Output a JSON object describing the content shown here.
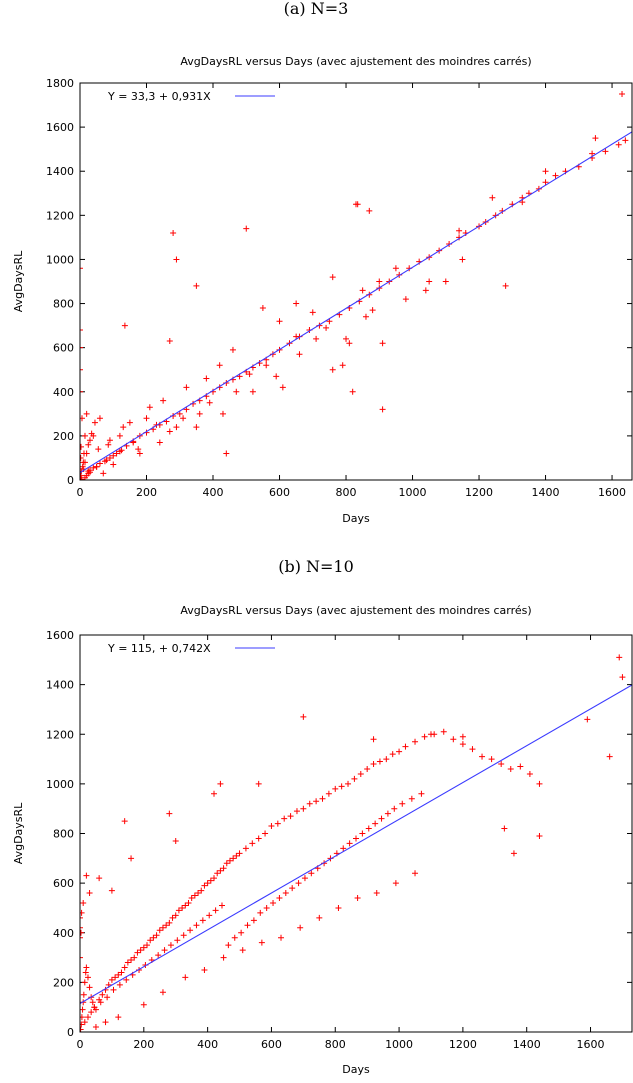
{
  "chart_data": [
    {
      "type": "scatter",
      "caption": "(a) N=3",
      "title": "AvgDaysRL versus Days (avec ajustement des moindres carrés)",
      "xlabel": "Days",
      "ylabel": "AvgDaysRL",
      "xlim": [
        0,
        1660
      ],
      "ylim": [
        0,
        1800
      ],
      "xticks": [
        0,
        200,
        400,
        600,
        800,
        1000,
        1200,
        1400,
        1600
      ],
      "yticks": [
        0,
        200,
        400,
        600,
        800,
        1000,
        1200,
        1400,
        1600,
        1800
      ],
      "grid": false,
      "legend_position": "top-left",
      "fit": {
        "label": "Y = 33,3 + 0,931X",
        "intercept": 33.3,
        "slope": 0.931,
        "color": "#3b3bff"
      },
      "marker_color": "#ff0000",
      "series": [
        {
          "marker": "plus",
          "x": [
            0,
            0,
            0,
            0,
            0,
            2,
            5,
            3,
            4,
            8,
            10,
            12,
            15,
            6,
            20,
            3,
            2,
            25,
            30,
            40,
            50,
            60,
            75,
            90,
            100,
            110,
            125,
            140,
            160,
            180,
            200,
            220,
            240,
            260,
            280,
            300,
            320,
            340,
            360,
            380,
            400,
            420,
            440,
            460,
            480,
            500,
            520,
            540,
            560,
            580,
            600,
            630,
            660,
            690,
            720,
            750,
            780,
            810,
            840,
            870,
            900,
            930,
            960,
            990,
            1020,
            1050,
            1080,
            1110,
            1140,
            1160,
            1200,
            1220,
            1250,
            1270,
            1300,
            1330,
            1350,
            1380,
            1400,
            1430,
            1460,
            1500,
            1540,
            1580,
            1620,
            1640,
            280,
            290,
            350,
            500,
            830,
            835,
            870,
            1140,
            30,
            135,
            270,
            200,
            250,
            320,
            380,
            420,
            460,
            550,
            600,
            650,
            700,
            760,
            800,
            850,
            880,
            900,
            950,
            1050,
            1150,
            1240,
            1280,
            1330,
            1400,
            1540,
            1630,
            1550,
            820,
            910,
            10,
            15,
            20,
            25,
            35,
            45,
            55,
            70,
            85,
            100,
            120,
            150,
            175,
            210,
            240,
            270,
            310,
            350,
            390,
            430,
            470,
            510,
            560,
            610,
            660,
            710,
            760,
            810,
            15,
            20,
            25,
            30,
            50,
            80,
            120,
            160,
            40,
            60,
            90,
            130,
            180,
            230,
            290,
            360,
            440,
            520,
            590,
            650,
            740,
            790,
            860,
            910,
            980,
            1040,
            1100
          ],
          "y": [
            960,
            680,
            600,
            500,
            400,
            2,
            3,
            20,
            40,
            60,
            80,
            120,
            200,
            280,
            300,
            150,
            100,
            40,
            45,
            55,
            60,
            75,
            85,
            100,
            110,
            120,
            135,
            155,
            175,
            200,
            215,
            230,
            250,
            265,
            290,
            300,
            320,
            345,
            360,
            380,
            400,
            420,
            440,
            455,
            470,
            490,
            510,
            530,
            545,
            570,
            590,
            620,
            650,
            680,
            700,
            720,
            750,
            780,
            810,
            840,
            870,
            900,
            930,
            960,
            990,
            1010,
            1040,
            1070,
            1100,
            1120,
            1150,
            1170,
            1200,
            1220,
            1250,
            1280,
            1300,
            1320,
            1350,
            1380,
            1400,
            1420,
            1460,
            1490,
            1520,
            1540,
            1120,
            1000,
            880,
            1140,
            1250,
            1250,
            1220,
            1130,
            180,
            700,
            630,
            280,
            360,
            420,
            460,
            520,
            590,
            780,
            720,
            800,
            760,
            920,
            640,
            860,
            770,
            900,
            960,
            900,
            1000,
            1280,
            880,
            1260,
            1400,
            1480,
            1750,
            1550,
            400,
            320,
            50,
            80,
            120,
            160,
            210,
            260,
            140,
            30,
            160,
            70,
            200,
            260,
            140,
            330,
            170,
            220,
            280,
            240,
            350,
            300,
            400,
            480,
            520,
            420,
            570,
            640,
            500,
            620,
            10,
            20,
            30,
            35,
            60,
            90,
            130,
            170,
            200,
            280,
            180,
            240,
            120,
            250,
            240,
            300,
            120,
            400,
            470,
            650,
            690,
            520,
            740,
            620,
            820,
            860,
            900
          ]
        }
      ]
    },
    {
      "type": "scatter",
      "caption": "(b) N=10",
      "title": "AvgDaysRL versus Days (avec ajustement des moindres carrés)",
      "xlabel": "Days",
      "ylabel": "AvgDaysRL",
      "xlim": [
        0,
        1730
      ],
      "ylim": [
        0,
        1600
      ],
      "xticks": [
        0,
        200,
        400,
        600,
        800,
        1000,
        1200,
        1400,
        1600
      ],
      "yticks": [
        0,
        200,
        400,
        600,
        800,
        1000,
        1200,
        1400,
        1600
      ],
      "grid": false,
      "legend_position": "top-left",
      "fit": {
        "label": "Y = 115, + 0,742X",
        "intercept": 115,
        "slope": 0.742,
        "color": "#3b3bff"
      },
      "marker_color": "#ff0000",
      "series": [
        {
          "marker": "plus",
          "x": [
            0,
            0,
            0,
            0,
            2,
            4,
            6,
            8,
            10,
            12,
            15,
            18,
            20,
            25,
            30,
            35,
            40,
            45,
            50,
            60,
            70,
            80,
            90,
            100,
            110,
            120,
            130,
            140,
            150,
            160,
            170,
            180,
            190,
            200,
            210,
            220,
            230,
            240,
            250,
            260,
            270,
            280,
            290,
            300,
            310,
            320,
            330,
            340,
            350,
            360,
            370,
            380,
            390,
            400,
            410,
            420,
            430,
            440,
            450,
            460,
            470,
            480,
            490,
            500,
            520,
            540,
            560,
            580,
            600,
            620,
            640,
            660,
            680,
            700,
            720,
            740,
            760,
            780,
            800,
            820,
            840,
            860,
            880,
            900,
            920,
            940,
            960,
            980,
            1000,
            1020,
            1050,
            1080,
            1110,
            1140,
            1170,
            1200,
            1230,
            1260,
            1290,
            1320,
            1350,
            1380,
            1410,
            1440,
            1590,
            1690,
            1700,
            1660,
            1330,
            1360,
            1440,
            700,
            920,
            1100,
            1200,
            560,
            440,
            420,
            280,
            300,
            160,
            140,
            100,
            60,
            30,
            20,
            10,
            5,
            3,
            50,
            80,
            120,
            200,
            260,
            330,
            390,
            450,
            510,
            570,
            630,
            690,
            750,
            810,
            870,
            930,
            990,
            1050,
            15,
            25,
            35,
            45,
            65,
            85,
            105,
            125,
            145,
            165,
            185,
            205,
            225,
            245,
            265,
            285,
            305,
            325,
            345,
            365,
            385,
            405,
            425,
            445,
            465,
            485,
            505,
            525,
            545,
            565,
            585,
            605,
            625,
            645,
            665,
            685,
            705,
            725,
            745,
            765,
            785,
            805,
            825,
            845,
            865,
            885,
            905,
            925,
            945,
            965,
            985,
            1010,
            1040,
            1070
          ],
          "y": [
            460,
            420,
            380,
            300,
            10,
            30,
            60,
            90,
            120,
            150,
            200,
            240,
            260,
            220,
            180,
            140,
            120,
            100,
            90,
            130,
            150,
            170,
            190,
            210,
            220,
            230,
            240,
            260,
            280,
            290,
            300,
            320,
            330,
            340,
            350,
            370,
            380,
            390,
            410,
            420,
            430,
            440,
            460,
            470,
            490,
            500,
            510,
            520,
            540,
            550,
            560,
            570,
            590,
            600,
            610,
            620,
            640,
            650,
            660,
            680,
            690,
            700,
            710,
            720,
            740,
            760,
            780,
            800,
            830,
            840,
            860,
            870,
            890,
            900,
            920,
            930,
            940,
            960,
            980,
            990,
            1000,
            1020,
            1040,
            1060,
            1080,
            1090,
            1100,
            1120,
            1130,
            1150,
            1170,
            1190,
            1200,
            1210,
            1180,
            1160,
            1140,
            1110,
            1100,
            1080,
            1060,
            1070,
            1040,
            1000,
            1260,
            1510,
            1430,
            1110,
            820,
            720,
            790,
            1270,
            1180,
            1200,
            1190,
            1000,
            1000,
            960,
            880,
            770,
            700,
            850,
            570,
            620,
            560,
            630,
            520,
            480,
            400,
            20,
            40,
            60,
            110,
            160,
            220,
            250,
            300,
            330,
            360,
            380,
            420,
            460,
            500,
            540,
            560,
            600,
            640,
            40,
            60,
            80,
            100,
            120,
            140,
            170,
            190,
            210,
            230,
            250,
            270,
            290,
            310,
            330,
            350,
            370,
            390,
            410,
            430,
            450,
            470,
            490,
            510,
            350,
            380,
            400,
            430,
            450,
            480,
            500,
            520,
            540,
            560,
            580,
            600,
            620,
            640,
            660,
            680,
            700,
            720,
            740,
            760,
            780,
            800,
            820,
            840,
            860,
            880,
            900,
            920,
            940,
            960
          ]
        }
      ]
    }
  ]
}
